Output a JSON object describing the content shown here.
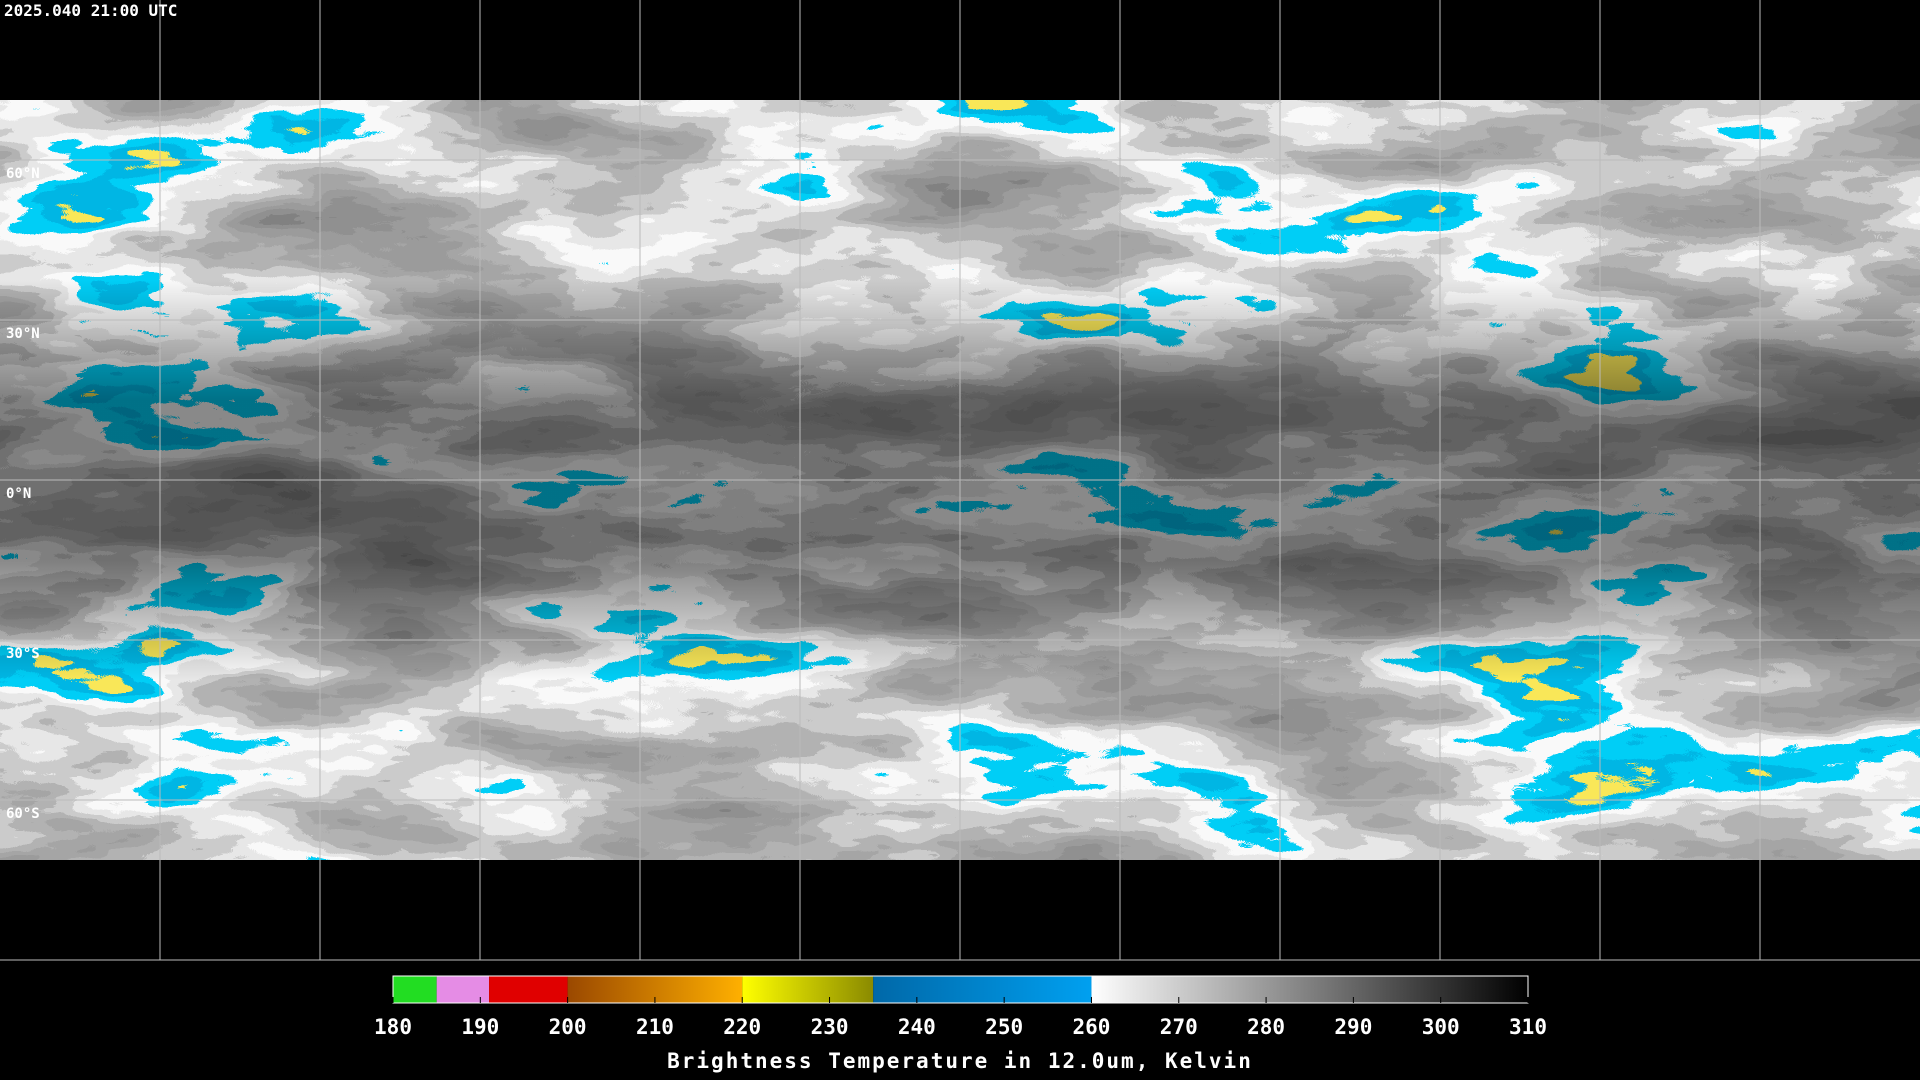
{
  "header": {
    "timestamp": "2025.040 21:00 UTC"
  },
  "map": {
    "lat_labels": [
      "60°N",
      "30°N",
      "0°N",
      "30°S",
      "60°S"
    ]
  },
  "colorbar": {
    "title": "Brightness Temperature in 12.0um, Kelvin",
    "range": [
      180,
      310
    ],
    "ticks": [
      180,
      190,
      200,
      210,
      220,
      230,
      240,
      250,
      260,
      270,
      280,
      290,
      300,
      310
    ],
    "segments": [
      {
        "from": 180,
        "to": 185,
        "colors": [
          "#22dd22",
          "#22dd22"
        ]
      },
      {
        "from": 185,
        "to": 191,
        "colors": [
          "#e58ce5",
          "#e58ce5"
        ]
      },
      {
        "from": 191,
        "to": 200,
        "colors": [
          "#e00000",
          "#e00000"
        ]
      },
      {
        "from": 200,
        "to": 220,
        "colors": [
          "#9a4800",
          "#ffb000"
        ]
      },
      {
        "from": 220,
        "to": 235,
        "colors": [
          "#ffff00",
          "#8a8a00"
        ]
      },
      {
        "from": 235,
        "to": 260,
        "colors": [
          "#0068a8",
          "#00a0f0"
        ]
      },
      {
        "from": 260,
        "to": 310,
        "colors": [
          "#ffffff",
          "#000000"
        ]
      }
    ]
  }
}
